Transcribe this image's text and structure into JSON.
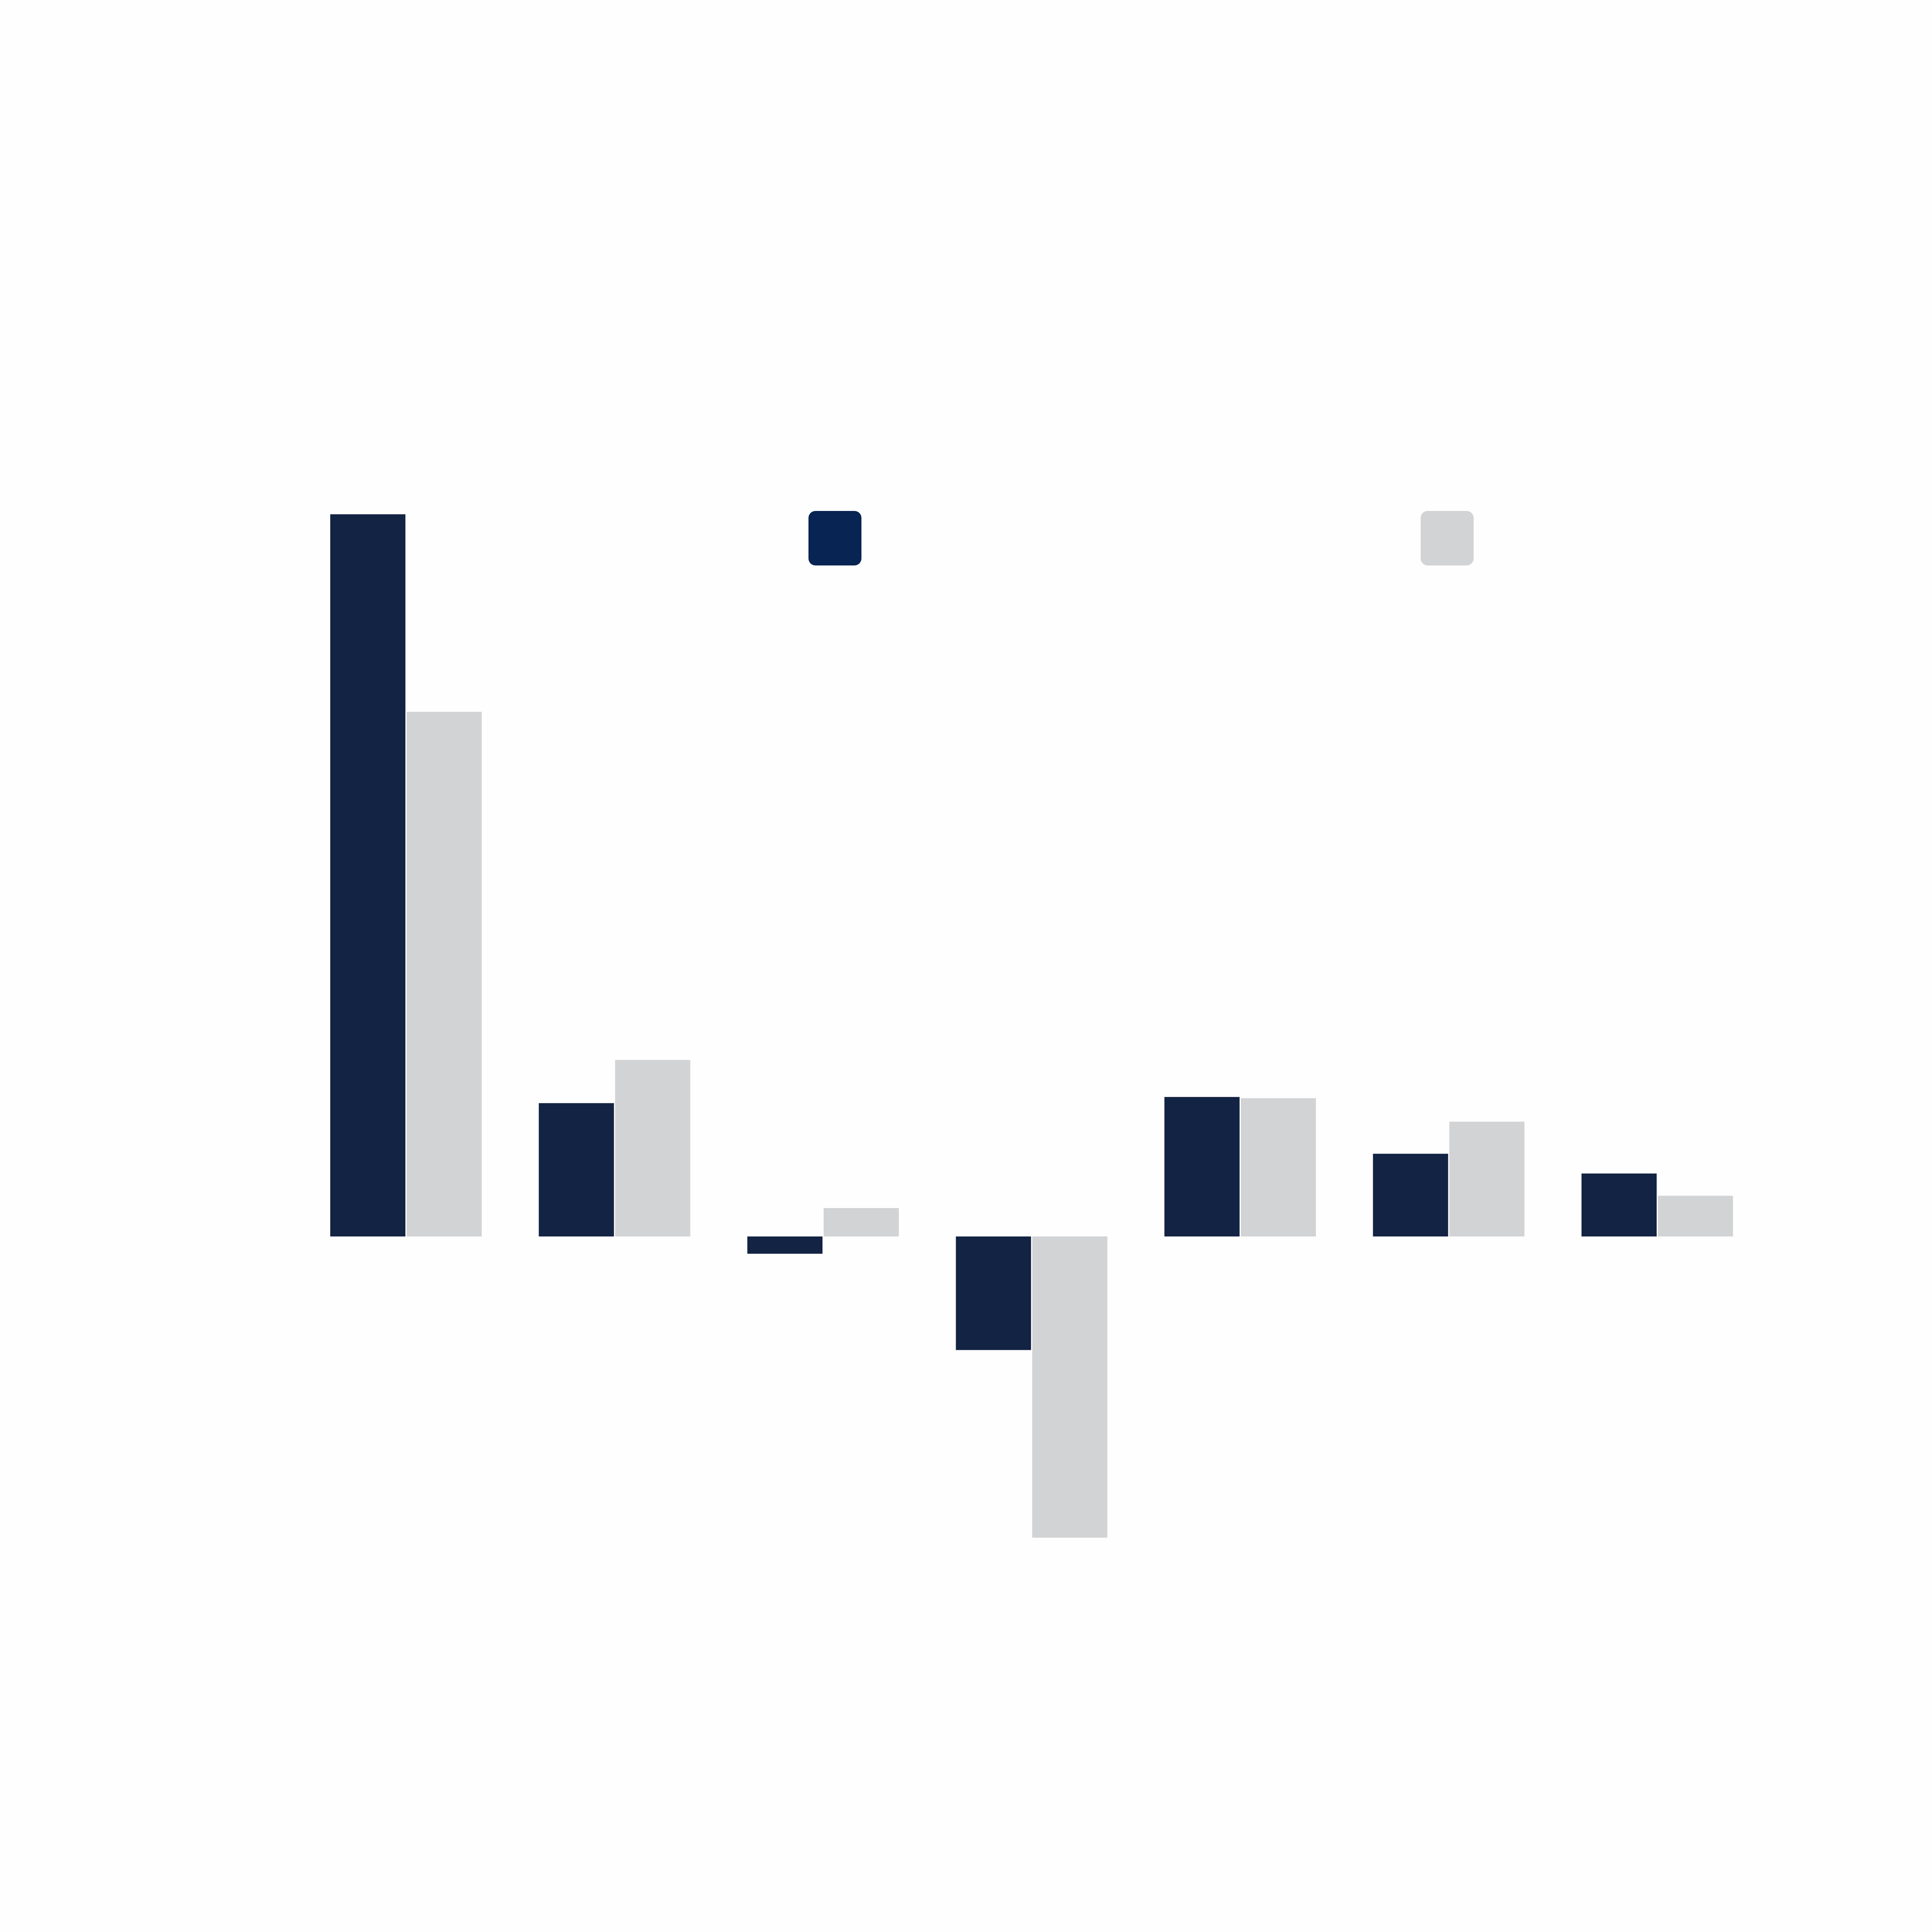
{
  "chart_data": {
    "type": "bar",
    "title": "",
    "xlabel": "",
    "ylabel": "",
    "grid": false,
    "legend_position": "top",
    "ylim": [
      -25,
      60
    ],
    "categories": [
      "",
      "",
      "",
      "",
      "",
      "",
      ""
    ],
    "series": [
      {
        "color": "#132343",
        "legend_color": "#072452",
        "values": [
          58.5,
          10.8,
          -1.4,
          -9.2,
          11.3,
          6.7,
          5.1
        ]
      },
      {
        "color": "#d2d3d5",
        "legend_color": "#d2d3d5",
        "values": [
          42.5,
          14.3,
          2.3,
          -24.4,
          11.2,
          9.3,
          3.3
        ]
      }
    ]
  }
}
